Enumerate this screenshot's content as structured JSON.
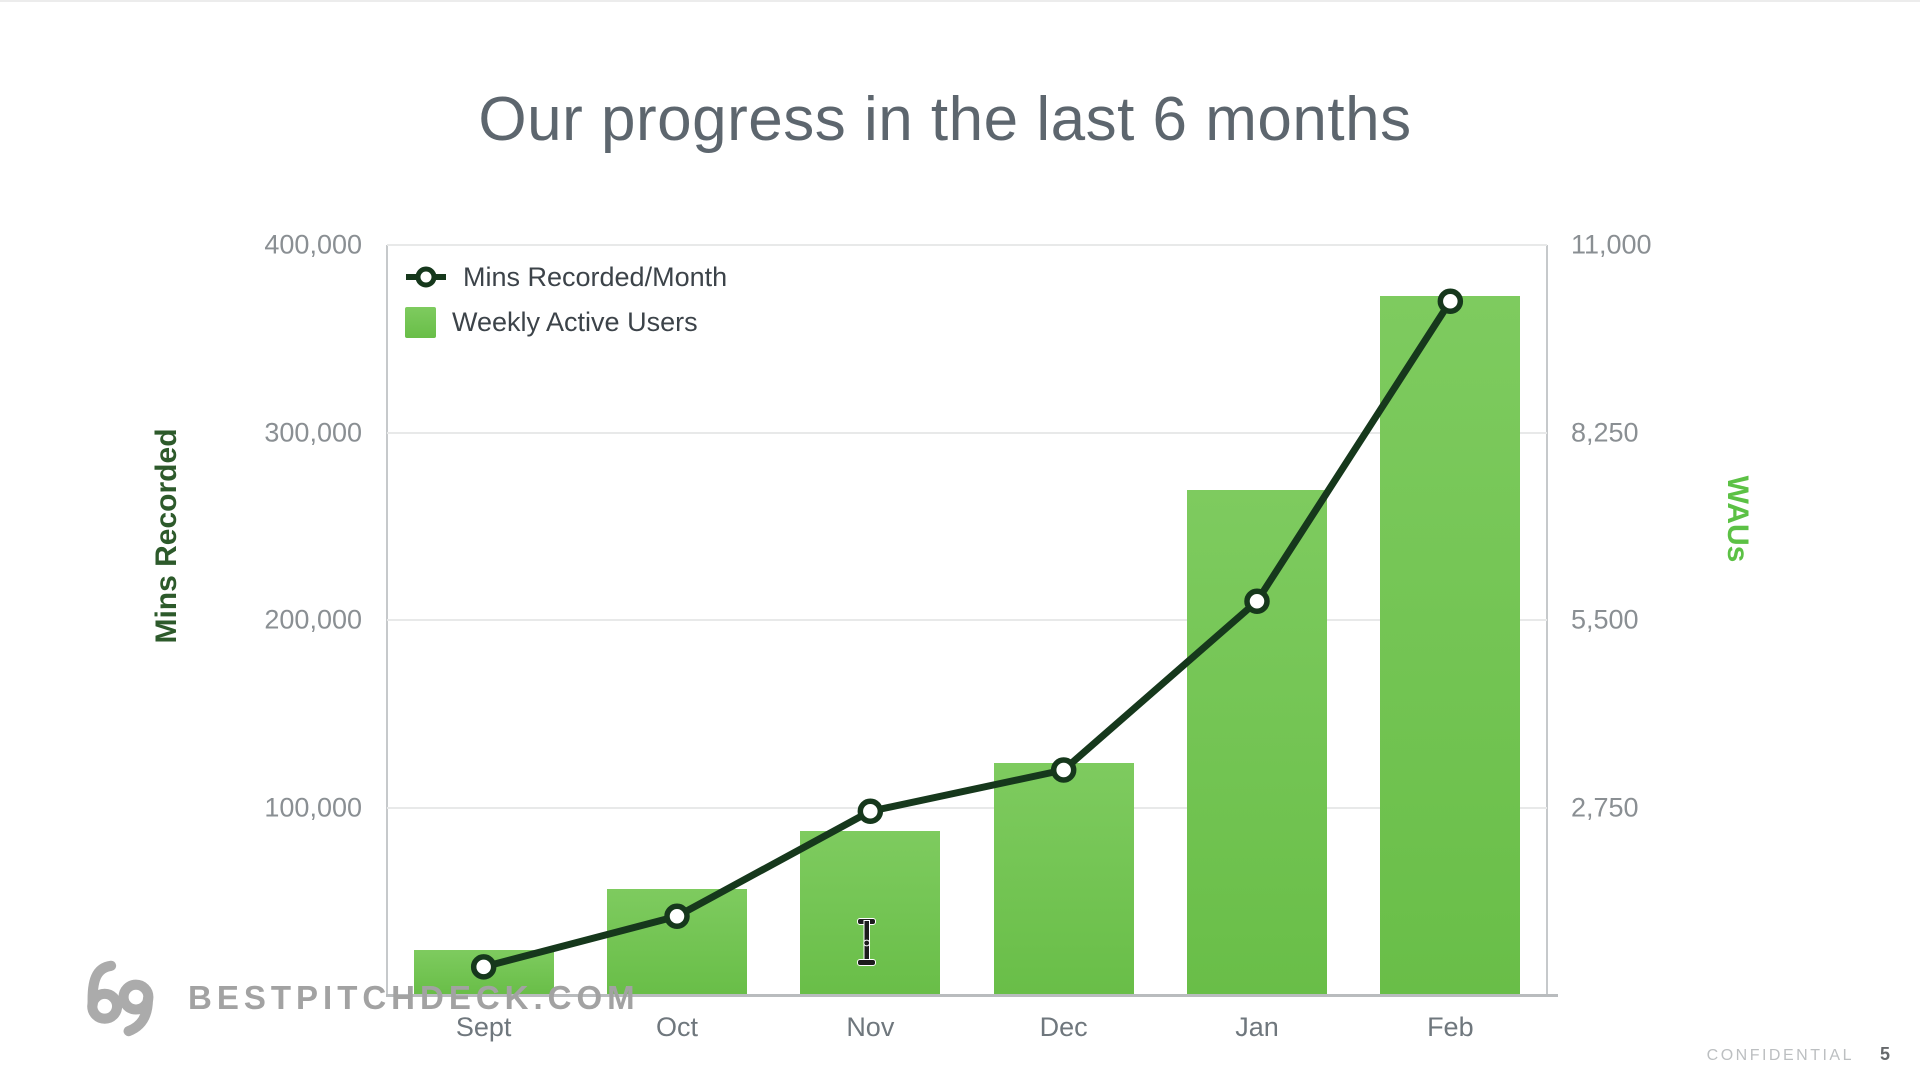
{
  "slide": {
    "title": "Our progress in the last 6 months",
    "footer": {
      "confidential": "CONFIDENTIAL",
      "page": "5"
    },
    "watermark": {
      "brand": "BESTPITCHDECK.COM"
    }
  },
  "chart_data": {
    "type": "bar",
    "title": "Our progress in the last 6 months",
    "categories": [
      "Sept",
      "Oct",
      "Nov",
      "Dec",
      "Jan",
      "Feb"
    ],
    "series": [
      {
        "name": "Mins Recorded/Month",
        "type": "line",
        "axis": "left",
        "values": [
          15000,
          42000,
          98000,
          120000,
          210000,
          370000
        ]
      },
      {
        "name": "Weekly Active Users",
        "type": "bar",
        "axis": "right",
        "values": [
          660,
          1550,
          2400,
          3400,
          7400,
          10250
        ]
      }
    ],
    "left_axis": {
      "label": "Mins Recorded",
      "min": 0,
      "max": 400000,
      "ticks": [
        400000,
        300000,
        200000,
        100000
      ],
      "tick_labels": [
        "400,000",
        "300,000",
        "200,000",
        "100,000"
      ]
    },
    "right_axis": {
      "label": "WAUs",
      "min": 0,
      "max": 11000,
      "ticks": [
        11000,
        8250,
        5500,
        2750
      ],
      "tick_labels": [
        "11,000",
        "8,250",
        "5,500",
        "2,750"
      ]
    },
    "legend": {
      "position": "top-left-inside",
      "entries": [
        "Mins Recorded/Month",
        "Weekly Active Users"
      ]
    },
    "grid": true
  },
  "colors": {
    "bar_top": "#7ecb5f",
    "bar_bottom": "#69be48",
    "line": "#16381c",
    "marker_fill": "#ffffff",
    "left_axis_label": "#2d5a2b",
    "right_axis_label": "#5cc145",
    "title": "#5d666e",
    "tick_text": "#8a8f93",
    "category_text": "#6f777d",
    "legend_text": "#3c4349",
    "grid_line": "#e8e9e9",
    "axis_line": "#c6c9cb",
    "watermark": "#a2a2a2",
    "confidential": "#bcbfc1",
    "page_number": "#66696c"
  }
}
